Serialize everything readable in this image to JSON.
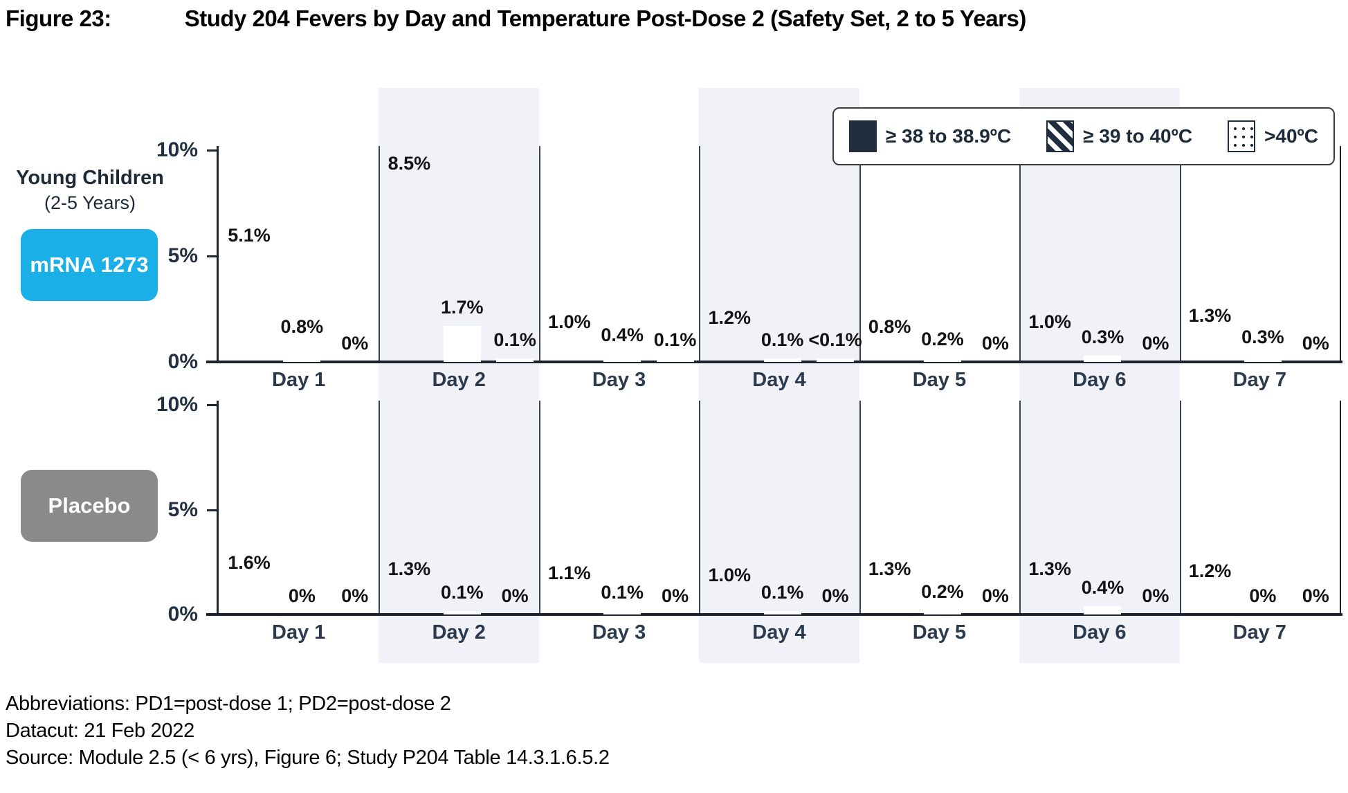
{
  "title": {
    "label": "Figure 23:",
    "text": "Study 204 Fevers by Day and Temperature Post-Dose 2 (Safety Set, 2 to 5 Years)"
  },
  "legend": {
    "position": "top-right",
    "items": [
      {
        "icon": "solid-square-swatch",
        "label": "≥ 38 to 38.9ºC"
      },
      {
        "icon": "diagonal-hatch-swatch",
        "label": "≥ 39 to 40ºC"
      },
      {
        "icon": "dotted-swatch",
        "label": ">40ºC"
      }
    ]
  },
  "chart_data": {
    "type": "bar",
    "categories": [
      "Day 1",
      "Day 2",
      "Day 3",
      "Day 4",
      "Day 5",
      "Day 6",
      "Day 7"
    ],
    "ylim": [
      0,
      10
    ],
    "yticks": [
      "0%",
      "5%",
      "10%"
    ],
    "grid": false,
    "shaded_columns": [
      "Day 2",
      "Day 4",
      "Day 6"
    ],
    "panels": [
      {
        "group": "Young Children",
        "group_sub": "(2-5 Years)",
        "badge": "mRNA 1273",
        "badge_color": "#1aafe6",
        "bar_color": "#1aafe6",
        "series": [
          {
            "name": "≥ 38 to 38.9ºC",
            "pattern": "solid",
            "values": [
              5.1,
              8.5,
              1.0,
              1.2,
              0.8,
              1.0,
              1.3
            ],
            "labels": [
              "5.1%",
              "8.5%",
              "1.0%",
              "1.2%",
              "0.8%",
              "1.0%",
              "1.3%"
            ]
          },
          {
            "name": "≥ 39 to 40ºC",
            "pattern": "hatched",
            "values": [
              0.8,
              1.7,
              0.4,
              0.1,
              0.2,
              0.3,
              0.3
            ],
            "labels": [
              "0.8%",
              "1.7%",
              "0.4%",
              "0.1%",
              "0.2%",
              "0.3%",
              "0.3%"
            ]
          },
          {
            "name": ">40ºC",
            "pattern": "dotted",
            "values": [
              0,
              0.1,
              0.1,
              0.05,
              0,
              0,
              0
            ],
            "labels": [
              "0%",
              "0.1%",
              "0.1%",
              "<0.1%",
              "0%",
              "0%",
              "0%"
            ]
          }
        ]
      },
      {
        "group": "",
        "group_sub": "",
        "badge": "Placebo",
        "badge_color": "#8a8a8a",
        "bar_color": "#909090",
        "series": [
          {
            "name": "≥ 38 to 38.9ºC",
            "pattern": "solid",
            "values": [
              1.6,
              1.3,
              1.1,
              1.0,
              1.3,
              1.3,
              1.2
            ],
            "labels": [
              "1.6%",
              "1.3%",
              "1.1%",
              "1.0%",
              "1.3%",
              "1.3%",
              "1.2%"
            ]
          },
          {
            "name": "≥ 39 to 40ºC",
            "pattern": "hatched",
            "values": [
              0,
              0.1,
              0.1,
              0.1,
              0.2,
              0.4,
              0
            ],
            "labels": [
              "0%",
              "0.1%",
              "0.1%",
              "0.1%",
              "0.2%",
              "0.4%",
              "0%"
            ]
          },
          {
            "name": ">40ºC",
            "pattern": "dotted",
            "values": [
              0,
              0,
              0,
              0,
              0,
              0,
              0
            ],
            "labels": [
              "0%",
              "0%",
              "0%",
              "0%",
              "0%",
              "0%",
              "0%"
            ]
          }
        ]
      }
    ]
  },
  "colors": {
    "mrna_cyan": "#1aafe6",
    "placebo_gray": "#8a8a8a",
    "legend_navy": "#1f2d3d",
    "shaded_band": "#f1f2f8",
    "axis_dark": "#1b2430",
    "label_navy": "#2c3a4e"
  },
  "footer": {
    "lines": [
      "Abbreviations: PD1=post-dose 1; PD2=post-dose 2",
      "Datacut: 21 Feb 2022",
      "Source: Module 2.5 (< 6 yrs), Figure 6; Study P204 Table 14.3.1.6.5.2"
    ]
  }
}
